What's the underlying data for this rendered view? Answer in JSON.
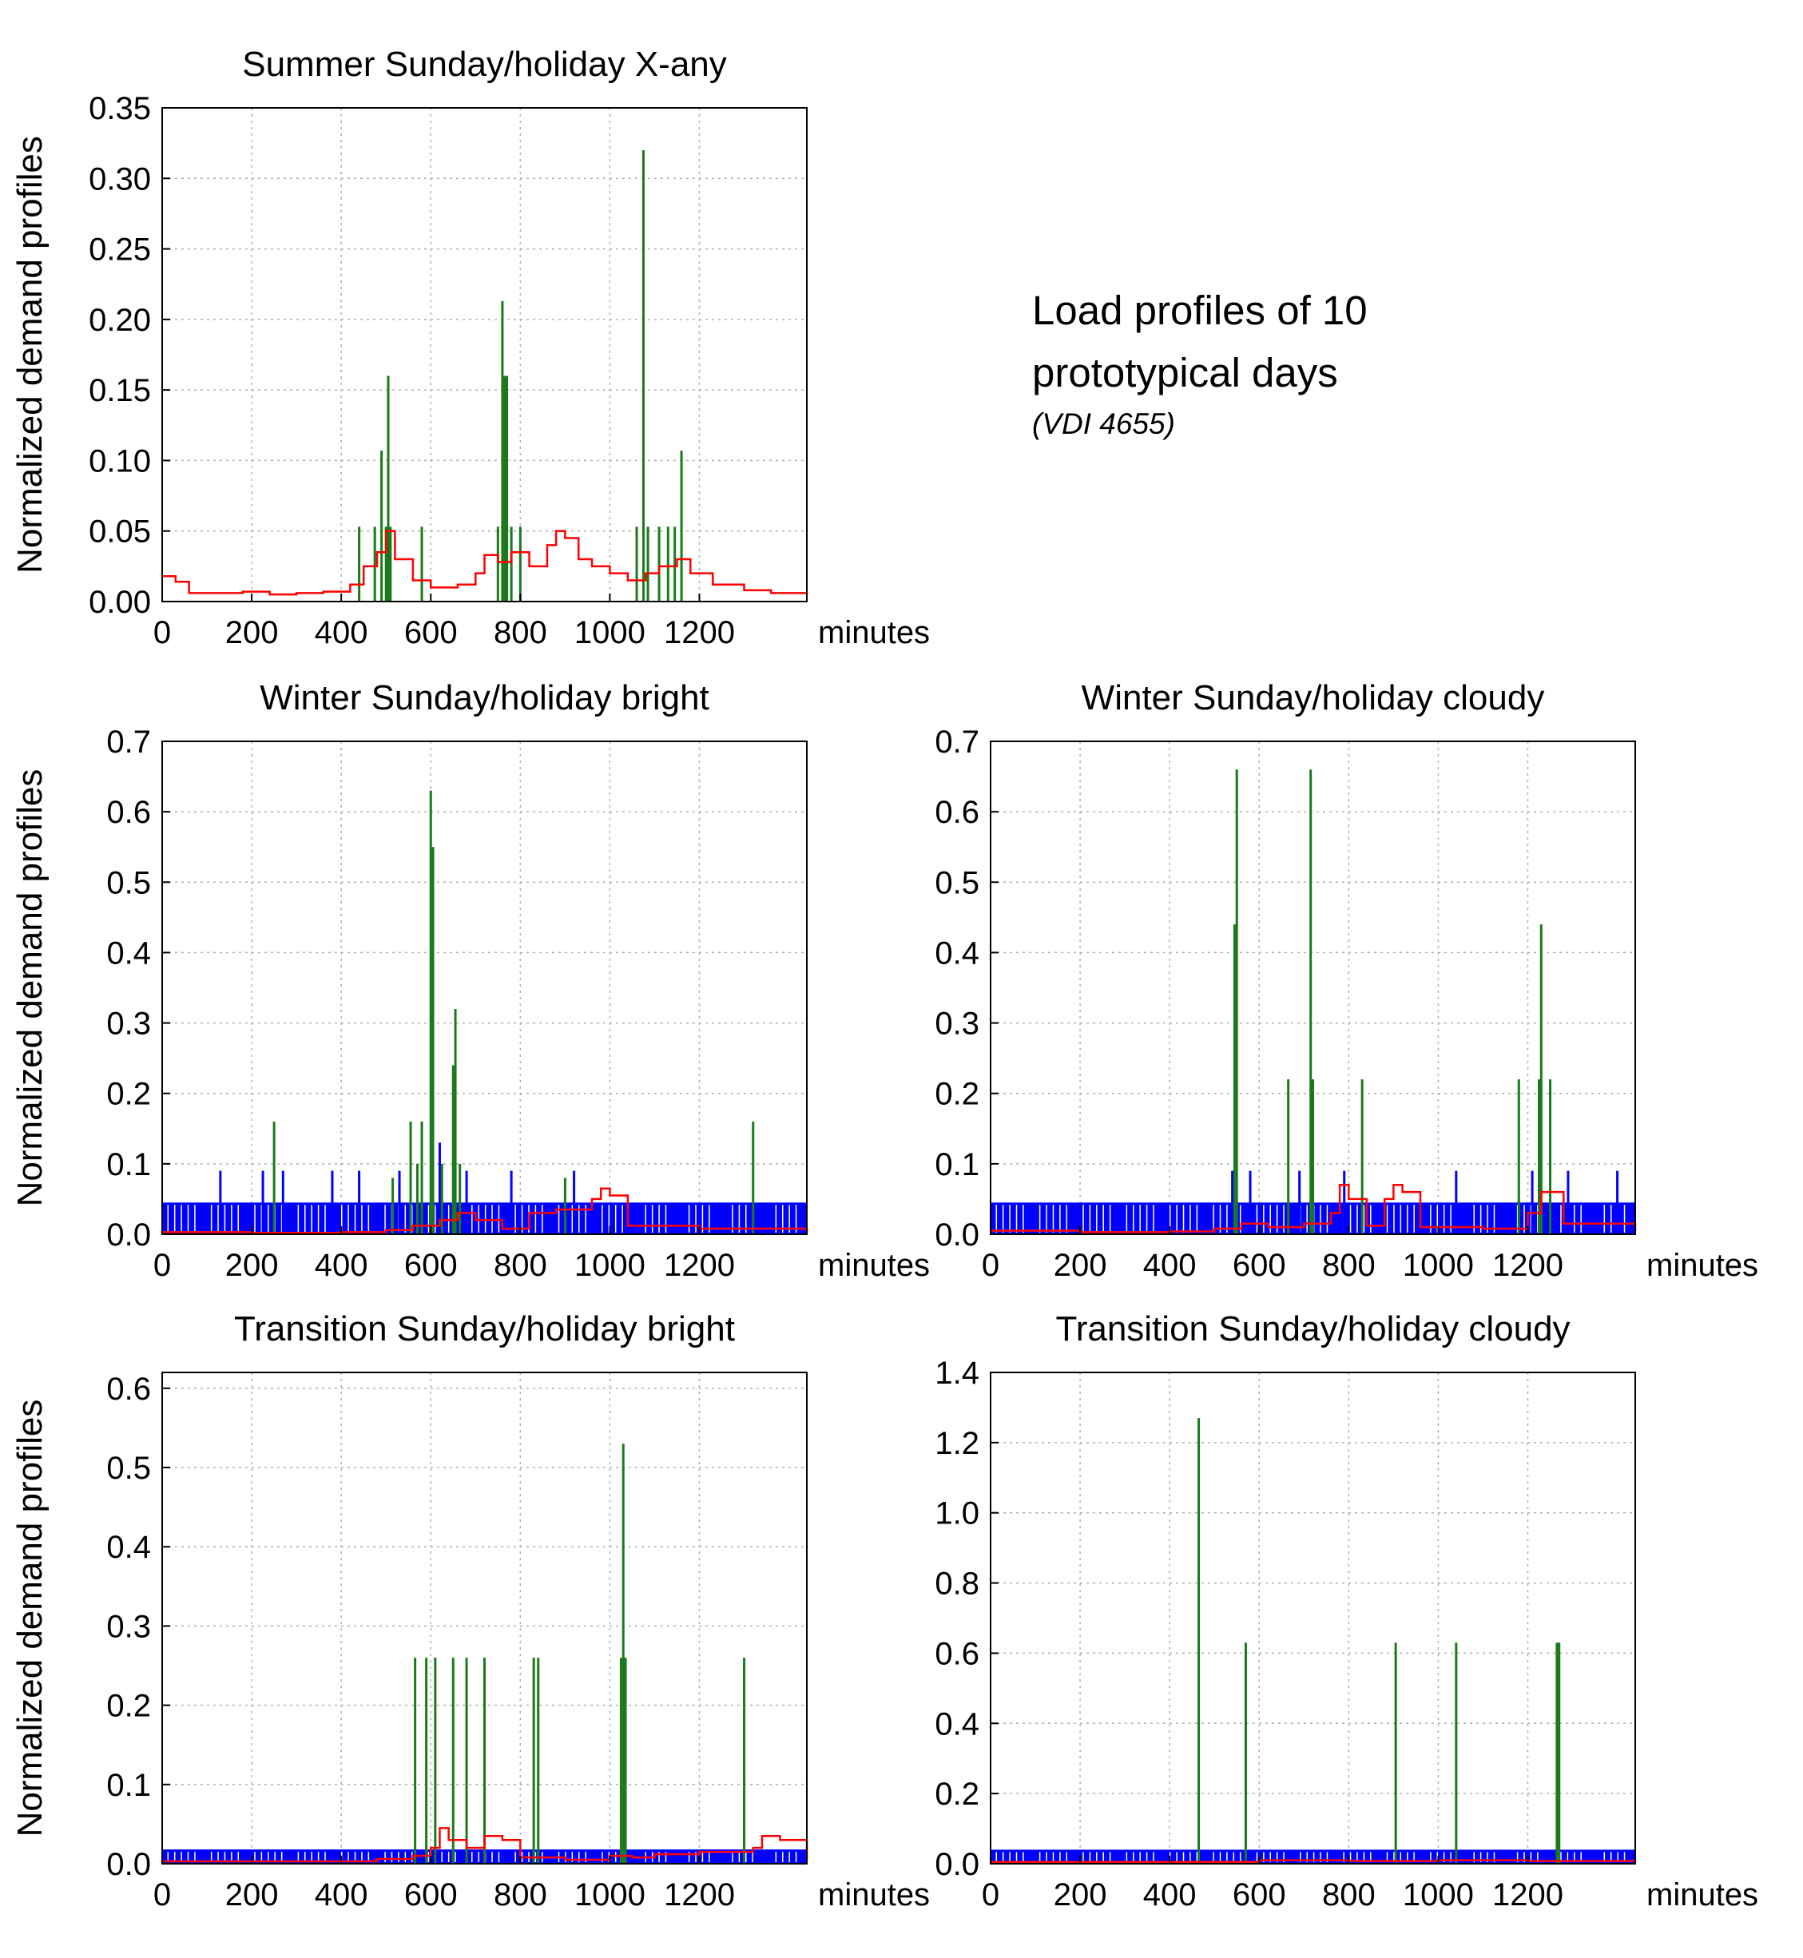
{
  "annotation": {
    "line1": "Load profiles of 10",
    "line2": "prototypical days",
    "ref": "(VDI 4655)"
  },
  "colors": {
    "green": "#1a7a1a",
    "blue": "#0000ff",
    "red": "#ff0000",
    "grid": "#b0b0b0",
    "axis": "#000000"
  },
  "chart_data": [
    {
      "id": "summer-sunday-xany",
      "type": "bar",
      "title": "Summer Sunday/holiday X-any",
      "ylabel": "Normalized demand profiles",
      "xlabel": "minutes",
      "xlim": [
        0,
        1440
      ],
      "ylim": [
        0,
        0.35
      ],
      "xticks": [
        0,
        200,
        400,
        600,
        800,
        1000,
        1200
      ],
      "xtick_labels": [
        "0",
        "200",
        "400",
        "600",
        "800",
        "1000",
        "1200"
      ],
      "yticks": [
        0,
        0.05,
        0.1,
        0.15,
        0.2,
        0.25,
        0.3,
        0.35
      ],
      "ytick_labels": [
        "0.00",
        "0.05",
        "0.10",
        "0.15",
        "0.20",
        "0.25",
        "0.30",
        "0.35"
      ],
      "grid": true,
      "green_spikes": [
        [
          440,
          0.053
        ],
        [
          475,
          0.053
        ],
        [
          490,
          0.107
        ],
        [
          500,
          0.053
        ],
        [
          505,
          0.16
        ],
        [
          510,
          0.053
        ],
        [
          580,
          0.053
        ],
        [
          750,
          0.053
        ],
        [
          760,
          0.213
        ],
        [
          765,
          0.16
        ],
        [
          770,
          0.16
        ],
        [
          780,
          0.053
        ],
        [
          800,
          0.053
        ],
        [
          1060,
          0.053
        ],
        [
          1075,
          0.32
        ],
        [
          1085,
          0.053
        ],
        [
          1110,
          0.053
        ],
        [
          1130,
          0.053
        ],
        [
          1145,
          0.053
        ],
        [
          1160,
          0.107
        ]
      ],
      "blue_band": null,
      "blue_spikes": [],
      "red_profile": [
        [
          0,
          0.018
        ],
        [
          30,
          0.014
        ],
        [
          60,
          0.006
        ],
        [
          120,
          0.006
        ],
        [
          180,
          0.007
        ],
        [
          240,
          0.005
        ],
        [
          300,
          0.006
        ],
        [
          360,
          0.007
        ],
        [
          420,
          0.012
        ],
        [
          450,
          0.025
        ],
        [
          480,
          0.035
        ],
        [
          500,
          0.05
        ],
        [
          520,
          0.03
        ],
        [
          560,
          0.015
        ],
        [
          600,
          0.01
        ],
        [
          660,
          0.012
        ],
        [
          700,
          0.02
        ],
        [
          720,
          0.033
        ],
        [
          750,
          0.028
        ],
        [
          780,
          0.035
        ],
        [
          820,
          0.025
        ],
        [
          860,
          0.04
        ],
        [
          880,
          0.05
        ],
        [
          900,
          0.045
        ],
        [
          930,
          0.03
        ],
        [
          960,
          0.025
        ],
        [
          1000,
          0.02
        ],
        [
          1040,
          0.015
        ],
        [
          1080,
          0.02
        ],
        [
          1110,
          0.025
        ],
        [
          1150,
          0.03
        ],
        [
          1180,
          0.02
        ],
        [
          1230,
          0.012
        ],
        [
          1300,
          0.008
        ],
        [
          1360,
          0.006
        ],
        [
          1440,
          0.005
        ]
      ]
    },
    {
      "id": "winter-sunday-bright",
      "type": "bar",
      "title": "Winter Sunday/holiday bright",
      "ylabel": "Normalized demand profiles",
      "xlabel": "minutes",
      "xlim": [
        0,
        1440
      ],
      "ylim": [
        0,
        0.7
      ],
      "xticks": [
        0,
        200,
        400,
        600,
        800,
        1000,
        1200
      ],
      "xtick_labels": [
        "0",
        "200",
        "400",
        "600",
        "800",
        "1000",
        "1200"
      ],
      "yticks": [
        0,
        0.1,
        0.2,
        0.3,
        0.4,
        0.5,
        0.6,
        0.7
      ],
      "ytick_labels": [
        "0.0",
        "0.1",
        "0.2",
        "0.3",
        "0.4",
        "0.5",
        "0.6",
        "0.7"
      ],
      "grid": true,
      "green_spikes": [
        [
          250,
          0.16
        ],
        [
          515,
          0.08
        ],
        [
          555,
          0.16
        ],
        [
          570,
          0.1
        ],
        [
          580,
          0.16
        ],
        [
          600,
          0.63
        ],
        [
          605,
          0.55
        ],
        [
          625,
          0.1
        ],
        [
          650,
          0.24
        ],
        [
          655,
          0.32
        ],
        [
          665,
          0.1
        ],
        [
          900,
          0.08
        ],
        [
          1320,
          0.16
        ]
      ],
      "blue_band": 0.045,
      "blue_spikes": [
        [
          130,
          0.09
        ],
        [
          225,
          0.09
        ],
        [
          270,
          0.09
        ],
        [
          380,
          0.09
        ],
        [
          440,
          0.09
        ],
        [
          530,
          0.09
        ],
        [
          620,
          0.13
        ],
        [
          680,
          0.09
        ],
        [
          780,
          0.09
        ],
        [
          920,
          0.09
        ]
      ],
      "red_profile": [
        [
          0,
          0.003
        ],
        [
          200,
          0.002
        ],
        [
          400,
          0.003
        ],
        [
          500,
          0.006
        ],
        [
          560,
          0.012
        ],
        [
          620,
          0.02
        ],
        [
          660,
          0.03
        ],
        [
          700,
          0.02
        ],
        [
          760,
          0.008
        ],
        [
          820,
          0.03
        ],
        [
          880,
          0.035
        ],
        [
          920,
          0.035
        ],
        [
          960,
          0.05
        ],
        [
          980,
          0.065
        ],
        [
          1000,
          0.055
        ],
        [
          1040,
          0.012
        ],
        [
          1200,
          0.008
        ],
        [
          1440,
          0.003
        ]
      ]
    },
    {
      "id": "winter-sunday-cloudy",
      "type": "bar",
      "title": "Winter Sunday/holiday cloudy",
      "ylabel": "",
      "xlabel": "minutes",
      "xlim": [
        0,
        1440
      ],
      "ylim": [
        0,
        0.7
      ],
      "xticks": [
        0,
        200,
        400,
        600,
        800,
        1000,
        1200
      ],
      "xtick_labels": [
        "0",
        "200",
        "400",
        "600",
        "800",
        "1000",
        "1200"
      ],
      "yticks": [
        0,
        0.1,
        0.2,
        0.3,
        0.4,
        0.5,
        0.6,
        0.7
      ],
      "ytick_labels": [
        "0.0",
        "0.1",
        "0.2",
        "0.3",
        "0.4",
        "0.5",
        "0.6",
        "0.7"
      ],
      "grid": true,
      "green_spikes": [
        [
          545,
          0.44
        ],
        [
          550,
          0.66
        ],
        [
          665,
          0.22
        ],
        [
          715,
          0.66
        ],
        [
          720,
          0.22
        ],
        [
          830,
          0.22
        ],
        [
          1180,
          0.22
        ],
        [
          1225,
          0.22
        ],
        [
          1230,
          0.44
        ],
        [
          1250,
          0.22
        ]
      ],
      "blue_band": 0.045,
      "blue_spikes": [
        [
          540,
          0.09
        ],
        [
          580,
          0.09
        ],
        [
          690,
          0.09
        ],
        [
          790,
          0.09
        ],
        [
          1040,
          0.09
        ],
        [
          1210,
          0.09
        ],
        [
          1290,
          0.09
        ],
        [
          1400,
          0.09
        ]
      ],
      "red_profile": [
        [
          0,
          0.005
        ],
        [
          200,
          0.003
        ],
        [
          400,
          0.004
        ],
        [
          500,
          0.008
        ],
        [
          560,
          0.015
        ],
        [
          620,
          0.01
        ],
        [
          700,
          0.015
        ],
        [
          760,
          0.03
        ],
        [
          780,
          0.07
        ],
        [
          800,
          0.05
        ],
        [
          840,
          0.012
        ],
        [
          880,
          0.05
        ],
        [
          900,
          0.07
        ],
        [
          920,
          0.06
        ],
        [
          960,
          0.01
        ],
        [
          1100,
          0.008
        ],
        [
          1200,
          0.03
        ],
        [
          1230,
          0.06
        ],
        [
          1280,
          0.015
        ],
        [
          1440,
          0.005
        ]
      ]
    },
    {
      "id": "transition-sunday-bright",
      "type": "bar",
      "title": "Transition Sunday/holiday bright",
      "ylabel": "Normalized demand profiles",
      "xlabel": "minutes",
      "xlim": [
        0,
        1440
      ],
      "ylim": [
        0,
        0.62
      ],
      "xticks": [
        0,
        200,
        400,
        600,
        800,
        1000,
        1200
      ],
      "xtick_labels": [
        "0",
        "200",
        "400",
        "600",
        "800",
        "1000",
        "1200"
      ],
      "yticks": [
        0,
        0.1,
        0.2,
        0.3,
        0.4,
        0.5,
        0.6
      ],
      "ytick_labels": [
        "0.0",
        "0.1",
        "0.2",
        "0.3",
        "0.4",
        "0.5",
        "0.6"
      ],
      "grid": true,
      "green_spikes": [
        [
          565,
          0.26
        ],
        [
          590,
          0.26
        ],
        [
          610,
          0.26
        ],
        [
          650,
          0.26
        ],
        [
          680,
          0.26
        ],
        [
          720,
          0.26
        ],
        [
          830,
          0.26
        ],
        [
          840,
          0.26
        ],
        [
          1025,
          0.26
        ],
        [
          1030,
          0.53
        ],
        [
          1035,
          0.26
        ],
        [
          1300,
          0.26
        ]
      ],
      "blue_band": 0.018,
      "blue_spikes": [],
      "red_profile": [
        [
          0,
          0.003
        ],
        [
          300,
          0.003
        ],
        [
          480,
          0.006
        ],
        [
          560,
          0.01
        ],
        [
          600,
          0.02
        ],
        [
          620,
          0.045
        ],
        [
          640,
          0.03
        ],
        [
          680,
          0.02
        ],
        [
          720,
          0.035
        ],
        [
          760,
          0.03
        ],
        [
          800,
          0.008
        ],
        [
          900,
          0.005
        ],
        [
          1000,
          0.01
        ],
        [
          1050,
          0.008
        ],
        [
          1100,
          0.012
        ],
        [
          1200,
          0.015
        ],
        [
          1320,
          0.02
        ],
        [
          1340,
          0.035
        ],
        [
          1380,
          0.03
        ],
        [
          1440,
          0.005
        ]
      ]
    },
    {
      "id": "transition-sunday-cloudy",
      "type": "bar",
      "title": "Transition Sunday/holiday cloudy",
      "ylabel": "",
      "xlabel": "minutes",
      "xlim": [
        0,
        1440
      ],
      "ylim": [
        0,
        1.4
      ],
      "xticks": [
        0,
        200,
        400,
        600,
        800,
        1000,
        1200
      ],
      "xtick_labels": [
        "0",
        "200",
        "400",
        "600",
        "800",
        "1000",
        "1200"
      ],
      "yticks": [
        0,
        0.2,
        0.4,
        0.6,
        0.8,
        1.0,
        1.2,
        1.4
      ],
      "ytick_labels": [
        "0.0",
        "0.2",
        "0.4",
        "0.6",
        "0.8",
        "1.0",
        "1.2",
        "1.4"
      ],
      "grid": true,
      "green_spikes": [
        [
          465,
          1.27
        ],
        [
          570,
          0.63
        ],
        [
          905,
          0.63
        ],
        [
          1040,
          0.63
        ],
        [
          1265,
          0.63
        ],
        [
          1270,
          0.63
        ]
      ],
      "blue_band": 0.04,
      "blue_spikes": [],
      "red_profile": [
        [
          0,
          0.005
        ],
        [
          300,
          0.005
        ],
        [
          600,
          0.01
        ],
        [
          800,
          0.008
        ],
        [
          1000,
          0.01
        ],
        [
          1200,
          0.008
        ],
        [
          1440,
          0.005
        ]
      ]
    }
  ]
}
